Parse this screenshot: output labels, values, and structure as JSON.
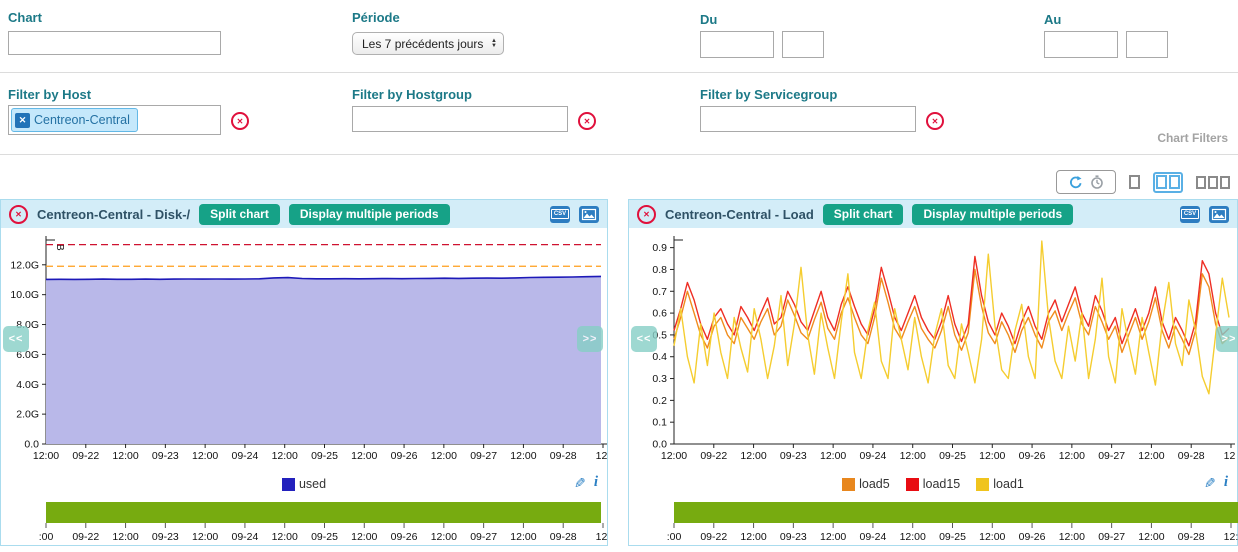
{
  "filters": {
    "chart_label": "Chart",
    "chart_value": "",
    "period_label": "Période",
    "period_value": "Les 7 précédents jours",
    "du_label": "Du",
    "du_date": "",
    "du_time": "",
    "au_label": "Au",
    "au_date": "",
    "au_time": "",
    "host_label": "Filter by Host",
    "host_tag": "Centreon-Central",
    "hostgroup_label": "Filter by Hostgroup",
    "hostgroup_value": "",
    "servicegroup_label": "Filter by Servicegroup",
    "servicegroup_value": "",
    "panel_caption": "Chart Filters"
  },
  "panel_buttons": {
    "split": "Split chart",
    "multiple": "Display multiple periods"
  },
  "icons": {
    "csv": "CSV",
    "nav_prev": "<<",
    "nav_next": ">>",
    "pencil": "✎",
    "info": "i",
    "close": "✕",
    "clear": "✕",
    "tag_remove": "✕",
    "arrow_up": "▲",
    "arrow_down": "▼"
  },
  "colors": {
    "teal": "#1c7987",
    "title_text": "#2f5266",
    "header_bg": "#d3edf8",
    "panel_border": "#aadcee",
    "button_green": "#16a287",
    "red_icon": "#e0103c",
    "tag_bg": "#c5e8fb",
    "tag_border": "#63b8e6",
    "tag_text": "#2471a3",
    "tag_btn": "#2273b8",
    "green_bar": "#77ab10",
    "blue_icon": "#2d7dc1",
    "nav_bg": "#86cfc6",
    "gray_caption": "#a3a3a3"
  },
  "chart_data": [
    {
      "type": "area",
      "title": "Centreon-Central - Disk-/",
      "ylabel": "B",
      "ylim": [
        0,
        13.66
      ],
      "yticks": [
        0,
        2,
        4,
        6,
        8,
        10,
        12
      ],
      "ytick_labels": [
        "0.0",
        "2.0G",
        "4.0G",
        "6.0G",
        "8.0G",
        "10.0G",
        "12.0G"
      ],
      "xtick_labels": [
        "12:00",
        "09-22",
        "12:00",
        "09-23",
        "12:00",
        "09-24",
        "12:00",
        "09-25",
        "12:00",
        "09-26",
        "12:00",
        "09-27",
        "12:00",
        "09-28",
        "12:"
      ],
      "xtick_labels_mini": [
        ":00",
        "09-22",
        "12:00",
        "09-23",
        "12:00",
        "09-24",
        "12:00",
        "09-25",
        "12:00",
        "09-26",
        "12:00",
        "09-27",
        "12:00",
        "09-28",
        "12:"
      ],
      "thresholds": [
        {
          "name": "critical",
          "value": 13.35,
          "color": "#cf1230"
        },
        {
          "name": "warning",
          "value": 11.9,
          "color": "#ff9e1b"
        }
      ],
      "series": [
        {
          "name": "used",
          "color": "#1d19b8",
          "fill": "#b9b8e9",
          "values": [
            11.02,
            11.03,
            11.02,
            11.03,
            11.04,
            11.03,
            11.03,
            11.04,
            11.03,
            11.04,
            11.05,
            11.04,
            11.05,
            11.04,
            11.05,
            11.06,
            11.12,
            11.14,
            11.08,
            11.06,
            11.06,
            11.07,
            11.06,
            11.07,
            11.08,
            11.07,
            11.08,
            11.09,
            11.1,
            11.09,
            11.1,
            11.11,
            11.1,
            11.12,
            11.15,
            11.16,
            11.17,
            11.18,
            11.2,
            11.22
          ]
        }
      ],
      "legend": [
        {
          "label": "used",
          "color": "#2321bd"
        }
      ]
    },
    {
      "type": "line",
      "title": "Centreon-Central - Load",
      "ylabel": "",
      "ylim": [
        0,
        0.935
      ],
      "yticks": [
        0,
        0.1,
        0.2,
        0.3,
        0.4,
        0.5,
        0.6,
        0.7,
        0.8,
        0.9
      ],
      "ytick_labels": [
        "0.0",
        "0.1",
        "0.2",
        "0.3",
        "0.4",
        "0.5",
        "0.6",
        "0.7",
        "0.8",
        "0.9"
      ],
      "xtick_labels": [
        "12:00",
        "09-22",
        "12:00",
        "09-23",
        "12:00",
        "09-24",
        "12:00",
        "09-25",
        "12:00",
        "09-26",
        "12:00",
        "09-27",
        "12:00",
        "09-28",
        "12:"
      ],
      "xtick_labels_mini": [
        ":00",
        "09-22",
        "12:00",
        "09-23",
        "12:00",
        "09-24",
        "12:00",
        "09-25",
        "12:00",
        "09-26",
        "12:00",
        "09-27",
        "12:00",
        "09-28",
        "12:"
      ],
      "thresholds": [],
      "series": [
        {
          "name": "load5",
          "color": "#f08c1e",
          "values": [
            0.48,
            0.58,
            0.7,
            0.6,
            0.5,
            0.44,
            0.54,
            0.58,
            0.5,
            0.46,
            0.58,
            0.53,
            0.48,
            0.56,
            0.62,
            0.5,
            0.54,
            0.66,
            0.59,
            0.51,
            0.48,
            0.57,
            0.65,
            0.53,
            0.48,
            0.6,
            0.67,
            0.58,
            0.5,
            0.46,
            0.58,
            0.76,
            0.65,
            0.53,
            0.48,
            0.56,
            0.63,
            0.53,
            0.48,
            0.44,
            0.52,
            0.63,
            0.5,
            0.43,
            0.51,
            0.8,
            0.63,
            0.51,
            0.46,
            0.56,
            0.5,
            0.42,
            0.52,
            0.58,
            0.5,
            0.44,
            0.56,
            0.61,
            0.52,
            0.6,
            0.67,
            0.55,
            0.5,
            0.63,
            0.56,
            0.48,
            0.54,
            0.42,
            0.5,
            0.58,
            0.48,
            0.56,
            0.67,
            0.52,
            0.44,
            0.54,
            0.48,
            0.41,
            0.52,
            0.78,
            0.72,
            0.55,
            0.46,
            0.49
          ]
        },
        {
          "name": "load15",
          "color": "#ee2e24",
          "values": [
            0.52,
            0.62,
            0.74,
            0.66,
            0.55,
            0.48,
            0.58,
            0.62,
            0.55,
            0.5,
            0.63,
            0.58,
            0.52,
            0.6,
            0.67,
            0.55,
            0.58,
            0.7,
            0.64,
            0.56,
            0.52,
            0.61,
            0.7,
            0.58,
            0.52,
            0.64,
            0.72,
            0.63,
            0.55,
            0.5,
            0.62,
            0.81,
            0.7,
            0.58,
            0.52,
            0.6,
            0.68,
            0.58,
            0.52,
            0.48,
            0.56,
            0.68,
            0.55,
            0.47,
            0.55,
            0.86,
            0.68,
            0.56,
            0.5,
            0.6,
            0.54,
            0.46,
            0.56,
            0.63,
            0.54,
            0.48,
            0.6,
            0.66,
            0.56,
            0.64,
            0.72,
            0.6,
            0.54,
            0.68,
            0.61,
            0.52,
            0.58,
            0.46,
            0.54,
            0.62,
            0.52,
            0.6,
            0.72,
            0.56,
            0.48,
            0.58,
            0.52,
            0.45,
            0.56,
            0.84,
            0.78,
            0.6,
            0.5,
            0.53
          ]
        },
        {
          "name": "load1",
          "color": "#f5cd30",
          "values": [
            0.45,
            0.62,
            0.4,
            0.28,
            0.55,
            0.36,
            0.6,
            0.42,
            0.3,
            0.58,
            0.44,
            0.33,
            0.62,
            0.48,
            0.3,
            0.45,
            0.68,
            0.36,
            0.55,
            0.81,
            0.5,
            0.32,
            0.6,
            0.44,
            0.3,
            0.56,
            0.78,
            0.42,
            0.3,
            0.52,
            0.65,
            0.38,
            0.3,
            0.62,
            0.48,
            0.34,
            0.58,
            0.4,
            0.28,
            0.5,
            0.62,
            0.36,
            0.3,
            0.55,
            0.42,
            0.28,
            0.48,
            0.87,
            0.54,
            0.34,
            0.3,
            0.52,
            0.64,
            0.4,
            0.3,
            0.93,
            0.58,
            0.38,
            0.3,
            0.54,
            0.38,
            0.6,
            0.3,
            0.48,
            0.76,
            0.4,
            0.28,
            0.62,
            0.46,
            0.32,
            0.58,
            0.42,
            0.27,
            0.55,
            0.74,
            0.46,
            0.36,
            0.66,
            0.52,
            0.31,
            0.23,
            0.5,
            0.76,
            0.58
          ]
        }
      ],
      "legend": [
        {
          "label": "load5",
          "color": "#e8871e"
        },
        {
          "label": "load15",
          "color": "#e80c12"
        },
        {
          "label": "load1",
          "color": "#f0c41d"
        }
      ]
    }
  ]
}
